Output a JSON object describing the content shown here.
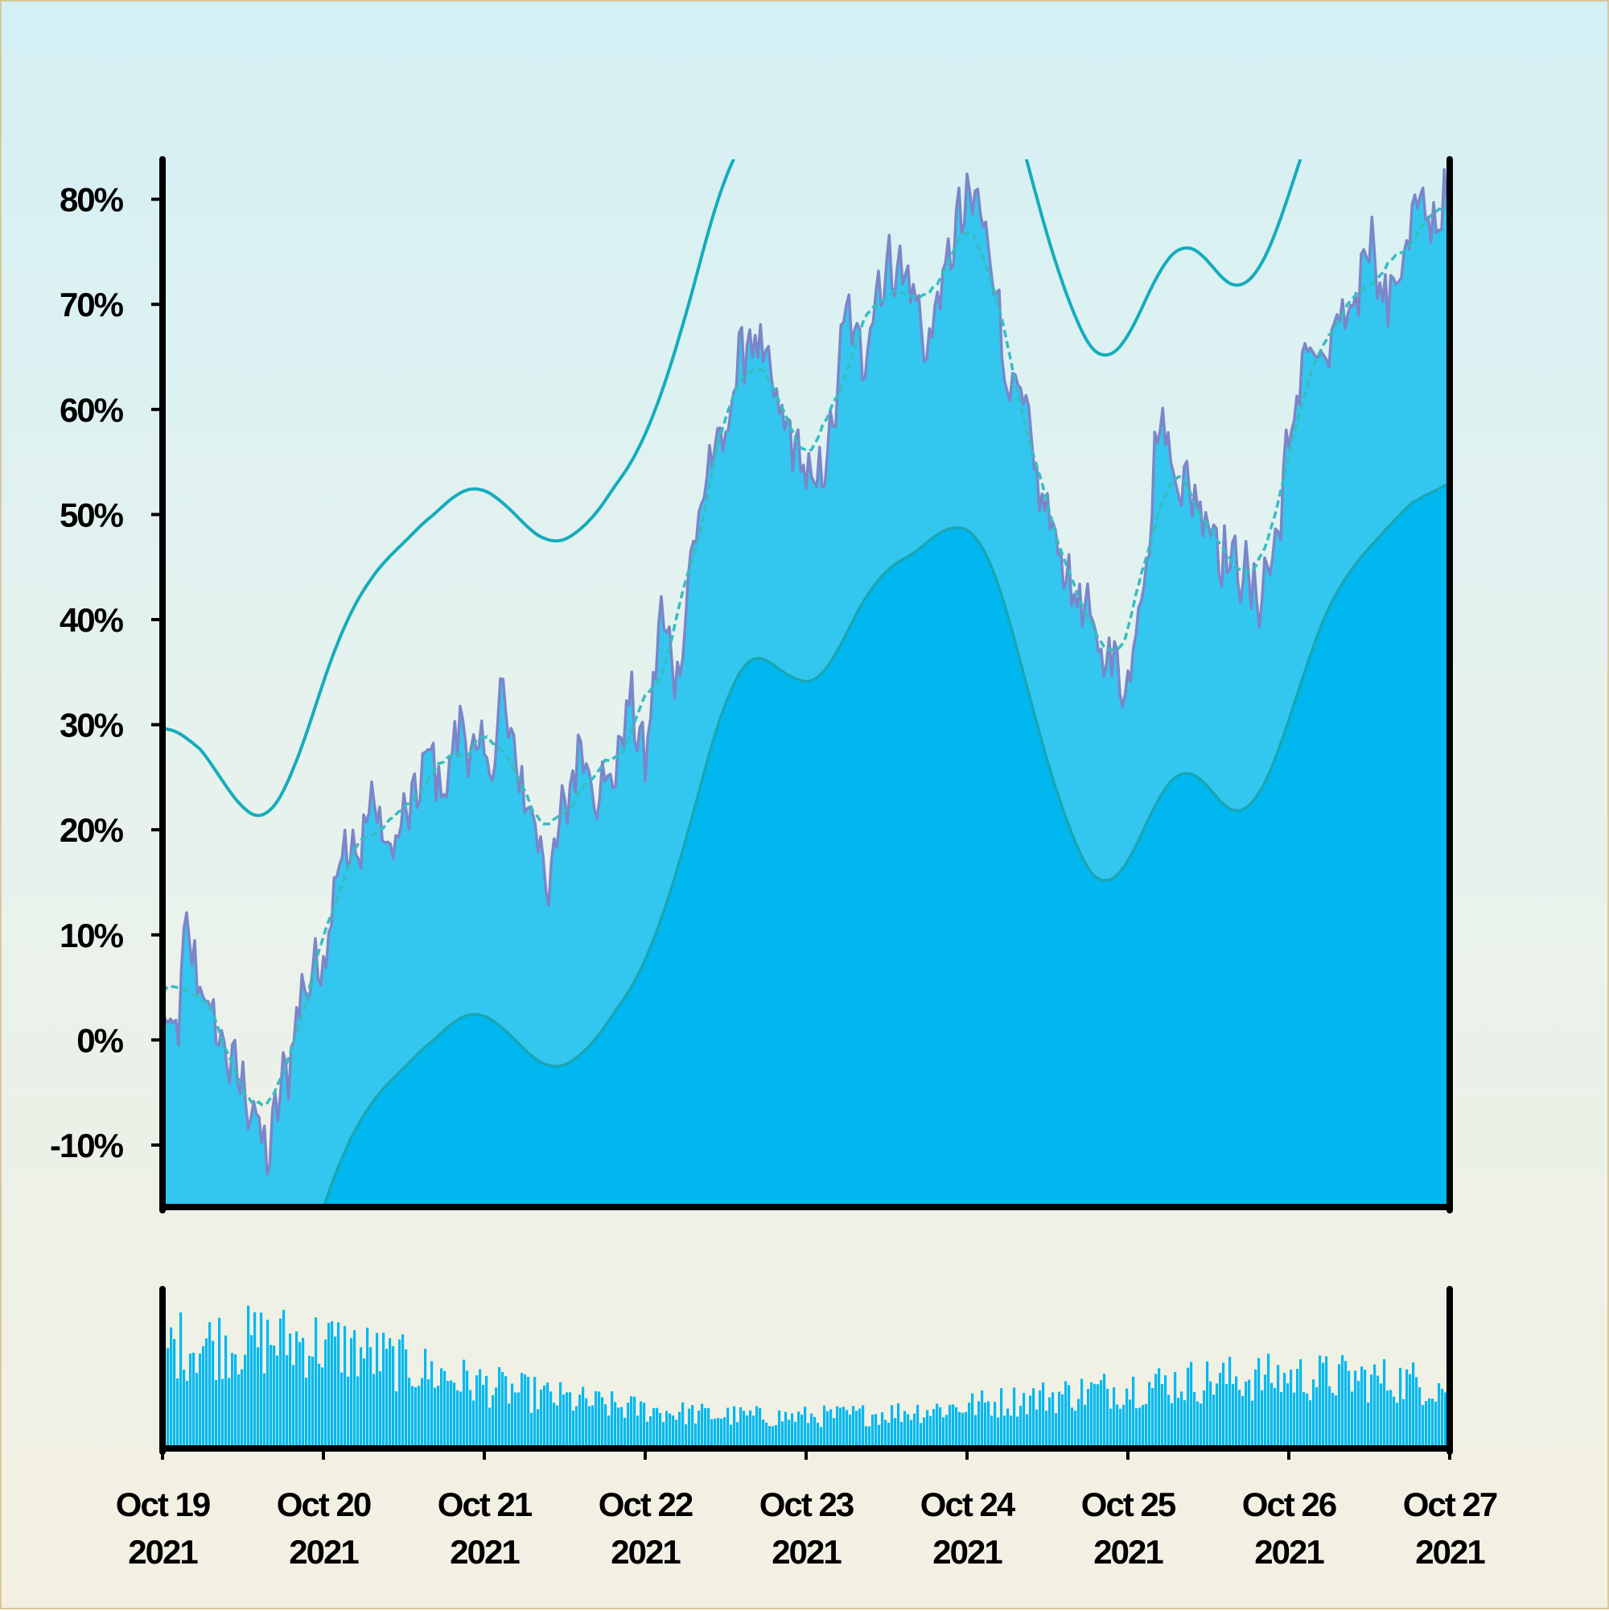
{
  "chart_data": {
    "type": "area",
    "x_labels": [
      {
        "line1": "Oct 19",
        "line2": "2021"
      },
      {
        "line1": "Oct 20",
        "line2": "2021"
      },
      {
        "line1": "Oct 21",
        "line2": "2021"
      },
      {
        "line1": "Oct 22",
        "line2": "2021"
      },
      {
        "line1": "Oct 23",
        "line2": "2021"
      },
      {
        "line1": "Oct 24",
        "line2": "2021"
      },
      {
        "line1": "Oct 25",
        "line2": "2021"
      },
      {
        "line1": "Oct 26",
        "line2": "2021"
      },
      {
        "line1": "Oct 27",
        "line2": "2021"
      }
    ],
    "y_ticks": [
      "80%",
      "70%",
      "60%",
      "50%",
      "40%",
      "30%",
      "20%",
      "10%",
      "0%",
      "-10%"
    ],
    "y_tick_values": [
      80,
      70,
      60,
      50,
      40,
      30,
      20,
      10,
      0,
      -10
    ],
    "ylim": [
      -15.9,
      83.8
    ],
    "x_days": [
      0,
      8
    ],
    "grid": false,
    "legend": "none",
    "main_series_anchors": [
      [
        0.0,
        2
      ],
      [
        0.08,
        0
      ],
      [
        0.15,
        10
      ],
      [
        0.22,
        6
      ],
      [
        0.33,
        1
      ],
      [
        0.45,
        -3
      ],
      [
        0.55,
        -6
      ],
      [
        0.65,
        -11
      ],
      [
        0.75,
        -4
      ],
      [
        0.88,
        5
      ],
      [
        1.0,
        8
      ],
      [
        1.1,
        18
      ],
      [
        1.2,
        17
      ],
      [
        1.3,
        23
      ],
      [
        1.4,
        18
      ],
      [
        1.55,
        22
      ],
      [
        1.65,
        27
      ],
      [
        1.75,
        24
      ],
      [
        1.85,
        30
      ],
      [
        1.95,
        27
      ],
      [
        2.05,
        26
      ],
      [
        2.1,
        33
      ],
      [
        2.2,
        26
      ],
      [
        2.28,
        22
      ],
      [
        2.35,
        19
      ],
      [
        2.4,
        15
      ],
      [
        2.5,
        22
      ],
      [
        2.6,
        28
      ],
      [
        2.7,
        24
      ],
      [
        2.8,
        25
      ],
      [
        2.9,
        32
      ],
      [
        3.0,
        27
      ],
      [
        3.1,
        40
      ],
      [
        3.2,
        35
      ],
      [
        3.3,
        47
      ],
      [
        3.4,
        55
      ],
      [
        3.5,
        57
      ],
      [
        3.55,
        63
      ],
      [
        3.65,
        67
      ],
      [
        3.75,
        64
      ],
      [
        3.85,
        59
      ],
      [
        3.95,
        56
      ],
      [
        4.05,
        52
      ],
      [
        4.15,
        57
      ],
      [
        4.25,
        69
      ],
      [
        4.35,
        65
      ],
      [
        4.45,
        72
      ],
      [
        4.55,
        74
      ],
      [
        4.65,
        72
      ],
      [
        4.75,
        66
      ],
      [
        4.85,
        72
      ],
      [
        4.95,
        78
      ],
      [
        5.05,
        80
      ],
      [
        5.15,
        75
      ],
      [
        5.25,
        63
      ],
      [
        5.35,
        60
      ],
      [
        5.45,
        52
      ],
      [
        5.55,
        48
      ],
      [
        5.65,
        43
      ],
      [
        5.75,
        40
      ],
      [
        5.85,
        37
      ],
      [
        6.0,
        34
      ],
      [
        6.1,
        45
      ],
      [
        6.2,
        59
      ],
      [
        6.3,
        54
      ],
      [
        6.4,
        52
      ],
      [
        6.5,
        50
      ],
      [
        6.6,
        46
      ],
      [
        6.7,
        45
      ],
      [
        6.8,
        42
      ],
      [
        6.9,
        46
      ],
      [
        7.0,
        56
      ],
      [
        7.1,
        66
      ],
      [
        7.2,
        64
      ],
      [
        7.3,
        67
      ],
      [
        7.4,
        70
      ],
      [
        7.5,
        77
      ],
      [
        7.6,
        70
      ],
      [
        7.7,
        74
      ],
      [
        7.8,
        79
      ],
      [
        7.9,
        78
      ],
      [
        8.0,
        80
      ]
    ],
    "series": [
      {
        "color": "#7b86c9",
        "fill": "#33c7f0",
        "role": "main series (noisy) with light-blue area"
      },
      {
        "color": "#37bdc1",
        "style": "dashed",
        "role": "smoothed line"
      },
      {
        "color": "#16acbc",
        "role": "upper band",
        "offset": 25
      },
      {
        "color": "#1aa5b5",
        "fill": "#00b8ef",
        "role": "lower band",
        "offset": -25
      }
    ],
    "bottom_panel": {
      "type": "bar",
      "color": "#00b8ef",
      "ylim": [
        0,
        1
      ]
    }
  },
  "colors": {
    "axis": "#000000",
    "main_line": "#7b86c9",
    "main_fill": "#33c7f0",
    "band_fill": "#00b8ef",
    "band_line": "#16acbc",
    "smooth_line": "#37bdc1",
    "volume_bar": "#00b8ef"
  }
}
